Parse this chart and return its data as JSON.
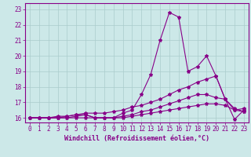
{
  "title": "",
  "xlabel": "Windchill (Refroidissement éolien,°C)",
  "ylabel": "",
  "xlim": [
    -0.5,
    23.5
  ],
  "ylim": [
    15.7,
    23.4
  ],
  "xticks": [
    0,
    1,
    2,
    3,
    4,
    5,
    6,
    7,
    8,
    9,
    10,
    11,
    12,
    13,
    14,
    15,
    16,
    17,
    18,
    19,
    20,
    21,
    22,
    23
  ],
  "yticks": [
    16,
    17,
    18,
    19,
    20,
    21,
    22,
    23
  ],
  "bg_color": "#cce8e8",
  "line_color": "#880088",
  "grid_color": "#aacccc",
  "lines": [
    [
      16.0,
      16.0,
      16.0,
      16.1,
      16.1,
      16.2,
      16.2,
      16.0,
      16.0,
      16.0,
      16.3,
      16.5,
      17.5,
      18.8,
      21.0,
      22.8,
      22.5,
      19.0,
      19.3,
      20.0,
      18.7,
      17.2,
      15.9,
      16.5
    ],
    [
      16.0,
      16.0,
      16.0,
      16.0,
      16.1,
      16.2,
      16.3,
      16.3,
      16.3,
      16.4,
      16.5,
      16.7,
      16.8,
      17.0,
      17.2,
      17.5,
      17.8,
      18.0,
      18.3,
      18.5,
      18.7,
      17.2,
      16.5,
      16.6
    ],
    [
      16.0,
      16.0,
      16.0,
      16.0,
      16.0,
      16.1,
      16.2,
      16.0,
      16.0,
      16.0,
      16.1,
      16.2,
      16.4,
      16.5,
      16.7,
      16.9,
      17.1,
      17.3,
      17.5,
      17.5,
      17.3,
      17.2,
      16.6,
      16.4
    ],
    [
      16.0,
      16.0,
      16.0,
      16.0,
      16.0,
      16.0,
      16.0,
      16.0,
      16.0,
      16.0,
      16.0,
      16.1,
      16.2,
      16.3,
      16.4,
      16.5,
      16.6,
      16.7,
      16.8,
      16.9,
      16.9,
      16.8,
      16.5,
      16.4
    ]
  ],
  "marker": "*",
  "markersize": 3,
  "linewidth": 0.8,
  "tick_fontsize": 5.5,
  "xlabel_fontsize": 6.0
}
